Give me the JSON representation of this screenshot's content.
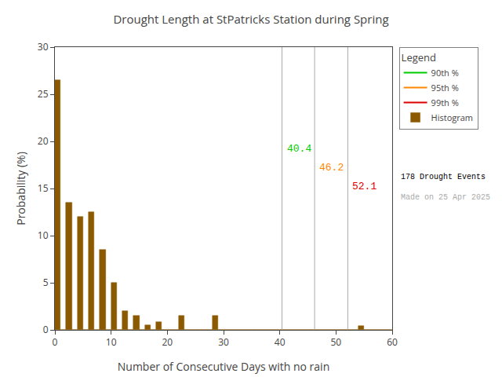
{
  "chart_data": {
    "type": "histogram",
    "title": "Drought Length at StPatricks Station during Spring",
    "xlabel": "Number of Consecutive Days with no rain",
    "ylabel": "Probability (%)",
    "name": "Histogram",
    "color": "#8B5A00",
    "bins": [
      0,
      1,
      2,
      3,
      4,
      5,
      6,
      7,
      8,
      9,
      10,
      11,
      12,
      13,
      14,
      15,
      16,
      17,
      18,
      19,
      20,
      21,
      22,
      23,
      24,
      25,
      26,
      27,
      28,
      29,
      30,
      31,
      32,
      33,
      34,
      35,
      36,
      37,
      38,
      39,
      40,
      41,
      42,
      43,
      44,
      45,
      46,
      47,
      48,
      49,
      50,
      51,
      52,
      53,
      54,
      55,
      56,
      57,
      58,
      59,
      60
    ],
    "values": [
      26.5,
      0.0,
      13.5,
      0.0,
      12.0,
      0.0,
      12.5,
      0.0,
      8.5,
      0.0,
      5.0,
      0.0,
      2.0,
      0.0,
      1.5,
      0.0,
      0.5,
      0.0,
      0.8,
      0.0,
      0.0,
      0.0,
      1.5,
      0.0,
      0.0,
      0.0,
      0.0,
      0.0,
      1.5,
      0.0,
      0.0,
      0.0,
      0.0,
      0.0,
      0.0,
      0.0,
      0.0,
      0.0,
      0.0,
      0.0,
      0.0,
      0.0,
      0.0,
      0.0,
      0.0,
      0.0,
      0.0,
      0.0,
      0.0,
      0.0,
      0.0,
      0.0,
      0.0,
      0.0,
      0.4,
      0.0,
      0.0,
      0.0,
      0.0,
      0.0
    ],
    "lines": [
      {
        "name": "90th %",
        "x": 40.4,
        "label_y": 20.0,
        "color": "#00CC00"
      },
      {
        "name": "95th %",
        "x": 46.2,
        "label_y": 18.0,
        "color": "#FF8800"
      },
      {
        "name": "99th %",
        "x": 52.1,
        "label_y": 16.0,
        "color": "#DD0000"
      }
    ],
    "line_color": "#aaaaaa",
    "legend": "upper right",
    "legend_title": "Legend",
    "annotations": [
      {
        "text": "178 Drought Events",
        "color": "#000000"
      },
      {
        "text": "Made on 25 Apr 2025",
        "color": "#aaaaaa"
      }
    ],
    "xlim": [
      0,
      60
    ],
    "ylim": [
      0,
      30
    ],
    "xticks": [
      0,
      10,
      20,
      30,
      40,
      50,
      60
    ],
    "yticks": [
      0,
      5,
      10,
      15,
      20,
      25,
      30
    ],
    "grid": false
  }
}
